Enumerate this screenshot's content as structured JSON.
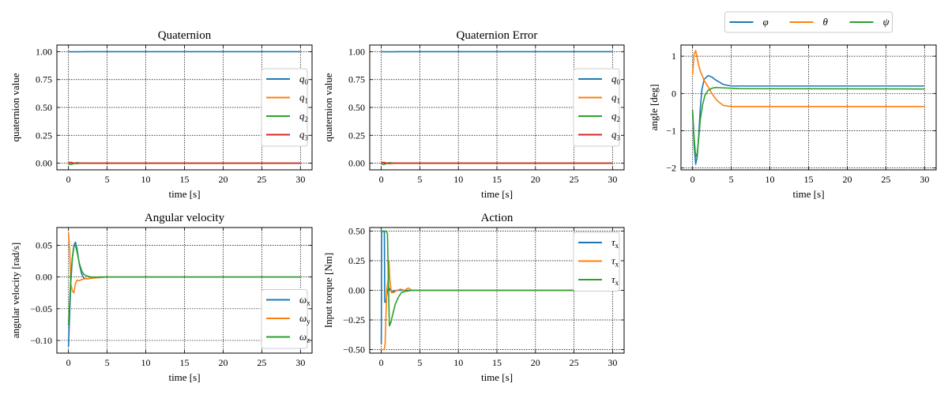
{
  "chart_data": [
    {
      "type": "line",
      "title": "Quaternion",
      "xlabel": "time [s]",
      "ylabel": "quaternion value",
      "xlim": [
        -1.5,
        31.5
      ],
      "ylim": [
        -0.06,
        1.06
      ],
      "xticks": [
        0,
        5,
        10,
        15,
        20,
        25,
        30
      ],
      "yticks": [
        0.0,
        0.25,
        0.5,
        0.75,
        1.0
      ],
      "ytick_labels": [
        "0.00",
        "0.25",
        "0.50",
        "0.75",
        "1.00"
      ],
      "grid": true,
      "legend": {
        "position": "center-right",
        "layout": "column"
      },
      "series": [
        {
          "name": "q",
          "sub": "0",
          "color": "#1f77b4",
          "x": [
            0,
            0.5,
            1,
            1.5,
            2,
            3,
            5,
            10,
            30
          ],
          "y": [
            1.0,
            0.999,
            0.999,
            0.9995,
            1.0,
            1.0,
            1.0,
            1.0,
            1.0
          ]
        },
        {
          "name": "q",
          "sub": "1",
          "color": "#ff7f0e",
          "x": [
            0,
            0.3,
            0.6,
            1,
            1.5,
            2,
            3,
            5,
            30
          ],
          "y": [
            0.005,
            0.008,
            0.002,
            -0.004,
            -0.001,
            0.0,
            0.0,
            0.0,
            0.0
          ]
        },
        {
          "name": "q",
          "sub": "2",
          "color": "#2ca02c",
          "x": [
            0,
            0.3,
            0.6,
            1,
            1.5,
            2,
            3,
            5,
            30
          ],
          "y": [
            -0.004,
            -0.012,
            -0.006,
            0.004,
            0.002,
            0.0,
            0.0,
            0.0,
            0.0
          ]
        },
        {
          "name": "q",
          "sub": "3",
          "color": "#d62728",
          "x": [
            0,
            0.3,
            0.6,
            1,
            1.5,
            2,
            3,
            5,
            30
          ],
          "y": [
            0.003,
            0.006,
            0.002,
            -0.002,
            0.0,
            0.0,
            0.0,
            0.0,
            0.0
          ]
        }
      ]
    },
    {
      "type": "line",
      "title": "Quaternion Error",
      "xlabel": "time [s]",
      "ylabel": "quaternion value",
      "xlim": [
        -1.5,
        31.5
      ],
      "ylim": [
        -0.06,
        1.06
      ],
      "xticks": [
        0,
        5,
        10,
        15,
        20,
        25,
        30
      ],
      "yticks": [
        0.0,
        0.25,
        0.5,
        0.75,
        1.0
      ],
      "ytick_labels": [
        "0.00",
        "0.25",
        "0.50",
        "0.75",
        "1.00"
      ],
      "grid": true,
      "legend": {
        "position": "center-right",
        "layout": "column"
      },
      "series": [
        {
          "name": "q",
          "sub": "0",
          "color": "#1f77b4",
          "x": [
            0,
            0.5,
            1,
            1.5,
            2,
            3,
            5,
            10,
            30
          ],
          "y": [
            1.0,
            0.999,
            0.999,
            0.9995,
            1.0,
            1.0,
            1.0,
            1.0,
            1.0
          ]
        },
        {
          "name": "q",
          "sub": "1",
          "color": "#ff7f0e",
          "x": [
            0,
            0.3,
            0.6,
            1,
            1.5,
            2,
            3,
            5,
            30
          ],
          "y": [
            0.005,
            0.008,
            0.002,
            -0.004,
            -0.001,
            0.0,
            0.0,
            0.0,
            0.0
          ]
        },
        {
          "name": "q",
          "sub": "2",
          "color": "#2ca02c",
          "x": [
            0,
            0.3,
            0.6,
            1,
            1.5,
            2,
            3,
            5,
            30
          ],
          "y": [
            -0.004,
            -0.012,
            -0.006,
            0.004,
            0.002,
            0.0,
            0.0,
            0.0,
            0.0
          ]
        },
        {
          "name": "q",
          "sub": "3",
          "color": "#d62728",
          "x": [
            0,
            0.3,
            0.6,
            1,
            1.5,
            2,
            3,
            5,
            30
          ],
          "y": [
            0.003,
            0.006,
            0.002,
            -0.002,
            0.0,
            0.0,
            0.0,
            0.0,
            0.0
          ]
        }
      ]
    },
    {
      "type": "line",
      "title": "",
      "xlabel": "time [s]",
      "ylabel": "angle [deg]",
      "xlim": [
        -1.5,
        31.5
      ],
      "ylim": [
        -2.05,
        1.3
      ],
      "xticks": [
        0,
        5,
        10,
        15,
        20,
        25,
        30
      ],
      "yticks": [
        -2,
        -1,
        0,
        1
      ],
      "ytick_labels": [
        "−2",
        "−1",
        "0",
        "1"
      ],
      "grid": true,
      "legend": {
        "position": "above",
        "layout": "row"
      },
      "series": [
        {
          "name": "φ",
          "sub": "",
          "color": "#1f77b4",
          "x": [
            0,
            0.2,
            0.4,
            0.6,
            0.8,
            1.0,
            1.2,
            1.5,
            2.0,
            2.5,
            3.0,
            4.0,
            5.0,
            6.0,
            30
          ],
          "y": [
            -0.5,
            -1.4,
            -1.9,
            -1.7,
            -1.1,
            -0.4,
            0.1,
            0.38,
            0.48,
            0.44,
            0.36,
            0.24,
            0.2,
            0.2,
            0.2
          ]
        },
        {
          "name": "θ",
          "sub": "",
          "color": "#ff7f0e",
          "x": [
            0,
            0.2,
            0.4,
            0.6,
            0.8,
            1.0,
            1.5,
            2.0,
            2.5,
            3.0,
            3.5,
            4.0,
            5.0,
            6.0,
            30
          ],
          "y": [
            0.5,
            1.05,
            1.15,
            0.95,
            0.75,
            0.6,
            0.35,
            0.18,
            0.0,
            -0.15,
            -0.25,
            -0.32,
            -0.35,
            -0.35,
            -0.35
          ]
        },
        {
          "name": "ψ",
          "sub": "",
          "color": "#2ca02c",
          "x": [
            0,
            0.2,
            0.4,
            0.6,
            0.8,
            1.0,
            1.3,
            1.6,
            2.0,
            2.5,
            3.0,
            4.0,
            5.0,
            6.0,
            30
          ],
          "y": [
            -0.45,
            -1.2,
            -1.7,
            -1.6,
            -1.2,
            -0.7,
            -0.3,
            -0.05,
            0.08,
            0.14,
            0.16,
            0.15,
            0.14,
            0.13,
            0.12
          ]
        }
      ]
    },
    {
      "type": "line",
      "title": "Angular velocity",
      "xlabel": "time [s]",
      "ylabel": "angular velocity [rad/s]",
      "xlim": [
        -1.5,
        31.5
      ],
      "ylim": [
        -0.12,
        0.078
      ],
      "xticks": [
        0,
        5,
        10,
        15,
        20,
        25,
        30
      ],
      "yticks": [
        -0.1,
        -0.05,
        0.0,
        0.05
      ],
      "ytick_labels": [
        "−0.10",
        "−0.05",
        "0.00",
        "0.05"
      ],
      "grid": true,
      "legend": {
        "position": "bottom-right",
        "layout": "column"
      },
      "series": [
        {
          "name": "ω",
          "sub": "x",
          "color": "#1f77b4",
          "x": [
            0,
            0.15,
            0.3,
            0.5,
            0.7,
            0.9,
            1.1,
            1.4,
            1.7,
            2.0,
            2.5,
            3.0,
            4.0,
            5.0,
            30
          ],
          "y": [
            -0.11,
            -0.06,
            -0.01,
            0.03,
            0.05,
            0.055,
            0.045,
            0.02,
            0.005,
            -0.002,
            -0.003,
            -0.001,
            0.0,
            0.0,
            0.0
          ]
        },
        {
          "name": "ω",
          "sub": "y",
          "color": "#ff7f0e",
          "x": [
            0,
            0.15,
            0.3,
            0.5,
            0.7,
            0.9,
            1.1,
            1.4,
            1.7,
            2.0,
            3.0,
            4.0,
            5.0,
            30
          ],
          "y": [
            0.07,
            0.045,
            -0.01,
            -0.022,
            -0.025,
            -0.01,
            -0.005,
            -0.006,
            -0.004,
            -0.003,
            -0.002,
            -0.001,
            0.0,
            0.0
          ]
        },
        {
          "name": "ω",
          "sub": "z",
          "color": "#2ca02c",
          "x": [
            0,
            0.15,
            0.3,
            0.5,
            0.7,
            0.9,
            1.1,
            1.4,
            1.7,
            2.0,
            2.5,
            3.0,
            4.0,
            5.0,
            30
          ],
          "y": [
            -0.075,
            -0.04,
            0.0,
            0.03,
            0.048,
            0.05,
            0.04,
            0.022,
            0.01,
            0.004,
            0.001,
            0.0,
            0.0,
            0.0,
            0.0
          ]
        }
      ]
    },
    {
      "type": "line",
      "title": "Action",
      "xlabel": "time [s]",
      "ylabel": "Input torque [Nm]",
      "xlim": [
        -1.5,
        31.5
      ],
      "ylim": [
        -0.53,
        0.53
      ],
      "xticks": [
        0,
        5,
        10,
        15,
        20,
        25,
        30
      ],
      "yticks": [
        -0.5,
        -0.25,
        0.0,
        0.25,
        0.5
      ],
      "ytick_labels": [
        "−0.50",
        "−0.25",
        "0.00",
        "0.25",
        "0.50"
      ],
      "grid": true,
      "legend": {
        "position": "top-right",
        "layout": "column"
      },
      "series": [
        {
          "name": "τ",
          "sub": "x",
          "color": "#1f77b4",
          "x": [
            0,
            0.05,
            0.1,
            0.4,
            0.45,
            0.6,
            0.8,
            1.0,
            1.2,
            1.5,
            2.0,
            3.0,
            4.0,
            30
          ],
          "y": [
            -0.45,
            0.5,
            0.5,
            0.5,
            -0.1,
            -0.1,
            0.0,
            0.02,
            0.0,
            -0.01,
            0.0,
            0.0,
            0.0,
            0.0
          ]
        },
        {
          "name": "τ",
          "sub": "x",
          "color": "#ff7f0e",
          "x": [
            0,
            0.4,
            0.5,
            0.7,
            0.9,
            1.0,
            1.1,
            1.3,
            1.6,
            2.0,
            2.5,
            3.0,
            3.5,
            4.0,
            5.0,
            30
          ],
          "y": [
            -0.5,
            -0.5,
            -0.45,
            0.0,
            0.1,
            0.25,
            0.1,
            -0.02,
            -0.02,
            0.0,
            0.01,
            0.0,
            0.02,
            0.0,
            0.0,
            0.0
          ]
        },
        {
          "name": "τ",
          "sub": "x",
          "color": "#2ca02c",
          "x": [
            0,
            0.3,
            0.6,
            0.8,
            0.95,
            1.05,
            1.2,
            1.5,
            1.8,
            2.2,
            2.6,
            3.0,
            4.0,
            5.0,
            30
          ],
          "y": [
            0.49,
            0.5,
            0.5,
            0.48,
            0.0,
            -0.3,
            -0.28,
            -0.2,
            -0.12,
            -0.06,
            -0.02,
            -0.01,
            0.0,
            0.0,
            0.0
          ]
        }
      ]
    }
  ]
}
